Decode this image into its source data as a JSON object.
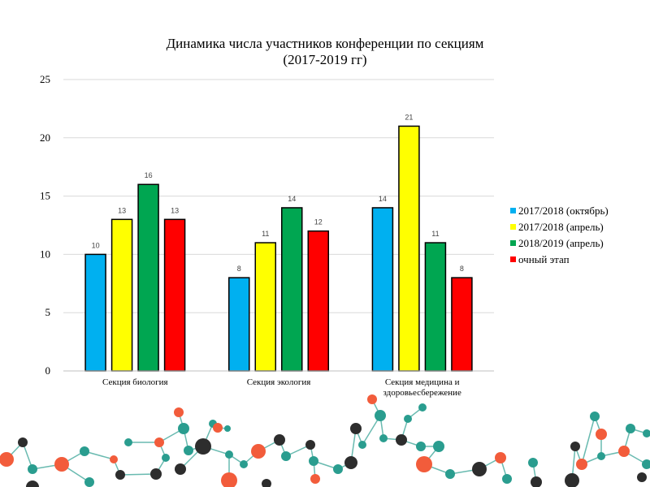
{
  "chart_data": {
    "type": "bar",
    "title": [
      "Динамика числа участников конференции по секциям",
      "(2017-2019 гг)"
    ],
    "categories": [
      [
        "Секция биология"
      ],
      [
        "Секция экология"
      ],
      [
        "Секция медицина и",
        "здоровьесбережение"
      ]
    ],
    "series": [
      {
        "name": "2017/2018 (октябрь)",
        "color": "#00b0f0",
        "values": [
          10,
          8,
          14
        ]
      },
      {
        "name": "2017/2018 (апрель)",
        "color": "#ffff00",
        "values": [
          13,
          11,
          21
        ]
      },
      {
        "name": "2018/2019 (апрель)",
        "color": "#00a651",
        "values": [
          16,
          14,
          11
        ]
      },
      {
        "name": "очный этап",
        "color": "#ff0000",
        "values": [
          13,
          12,
          8
        ]
      }
    ],
    "ylim": [
      0,
      25
    ],
    "yticks": [
      0,
      5,
      10,
      15,
      20,
      25
    ],
    "xlabel": "",
    "ylabel": "",
    "grid": true,
    "legend": "right"
  },
  "decoration": {
    "name": "molecule-network-footer",
    "colors": [
      "#2a9d8f",
      "#f25c3b",
      "#2d2d2d"
    ]
  }
}
